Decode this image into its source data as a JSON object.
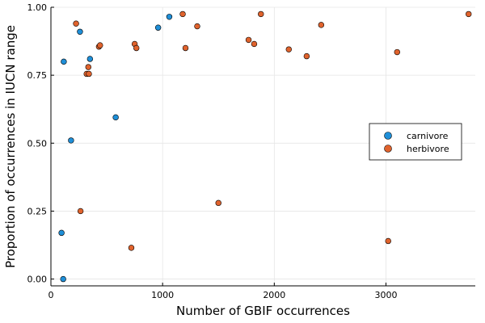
{
  "chart_data": {
    "type": "scatter",
    "xlabel": "Number of GBIF occurrences",
    "ylabel": "Proportion of occurrences in IUCN range",
    "xlim": [
      0,
      3800
    ],
    "ylim": [
      -0.025,
      1.0
    ],
    "xticks": [
      0,
      1000,
      2000,
      3000
    ],
    "yticks": [
      0.0,
      0.25,
      0.5,
      0.75,
      1.0
    ],
    "xtick_labels": [
      "0",
      "1000",
      "2000",
      "3000"
    ],
    "ytick_labels": [
      "0.00",
      "0.25",
      "0.50",
      "0.75",
      "1.00"
    ],
    "grid": true,
    "legend_position": "right",
    "series": [
      {
        "name": "carnivore",
        "color": "#1f8fd8",
        "points": [
          {
            "x": 115,
            "y": 0.8
          },
          {
            "x": 260,
            "y": 0.91
          },
          {
            "x": 350,
            "y": 0.81
          },
          {
            "x": 180,
            "y": 0.51
          },
          {
            "x": 580,
            "y": 0.595
          },
          {
            "x": 960,
            "y": 0.925
          },
          {
            "x": 1060,
            "y": 0.965
          },
          {
            "x": 95,
            "y": 0.17
          },
          {
            "x": 110,
            "y": 0.0
          }
        ]
      },
      {
        "name": "herbivore",
        "color": "#e0632d",
        "points": [
          {
            "x": 225,
            "y": 0.94
          },
          {
            "x": 265,
            "y": 0.25
          },
          {
            "x": 320,
            "y": 0.755
          },
          {
            "x": 335,
            "y": 0.78
          },
          {
            "x": 340,
            "y": 0.755
          },
          {
            "x": 430,
            "y": 0.855
          },
          {
            "x": 440,
            "y": 0.86
          },
          {
            "x": 720,
            "y": 0.115
          },
          {
            "x": 750,
            "y": 0.865
          },
          {
            "x": 765,
            "y": 0.85
          },
          {
            "x": 1180,
            "y": 0.975
          },
          {
            "x": 1205,
            "y": 0.85
          },
          {
            "x": 1310,
            "y": 0.93
          },
          {
            "x": 1500,
            "y": 0.28
          },
          {
            "x": 1770,
            "y": 0.88
          },
          {
            "x": 1820,
            "y": 0.865
          },
          {
            "x": 1880,
            "y": 0.975
          },
          {
            "x": 2130,
            "y": 0.845
          },
          {
            "x": 2290,
            "y": 0.82
          },
          {
            "x": 2420,
            "y": 0.935
          },
          {
            "x": 3020,
            "y": 0.14
          },
          {
            "x": 3100,
            "y": 0.835
          },
          {
            "x": 3740,
            "y": 0.975
          }
        ]
      }
    ]
  }
}
